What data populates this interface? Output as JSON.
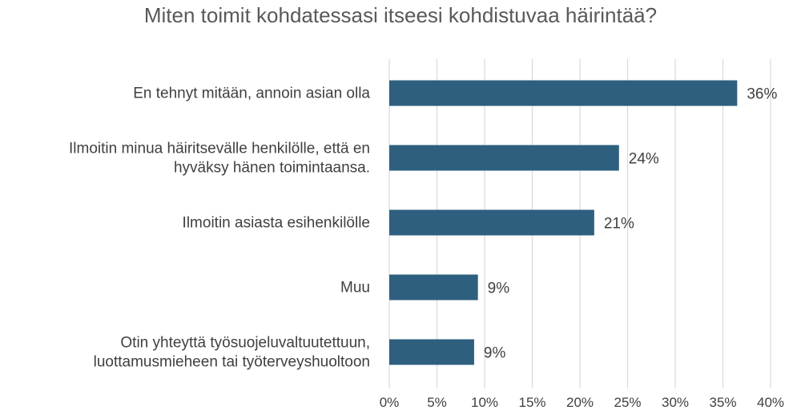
{
  "chart_data": {
    "type": "bar",
    "orientation": "horizontal",
    "title": "Miten toimit kohdatessasi itseesi kohdistuvaa häirintää?",
    "categories": [
      [
        "En tehnyt mitään, annoin asian olla"
      ],
      [
        "Ilmoitin minua häiritsevälle henkilölle, että en",
        "hyväksy hänen toimintaansa."
      ],
      [
        "Ilmoitin asiasta esihenkilölle"
      ],
      [
        "Muu"
      ],
      [
        "Otin yhteyttä työsuojeluvaltuutettuun,",
        "luottamusmieheen tai työterveyshuoltoon"
      ]
    ],
    "values": [
      36.5,
      24.1,
      21.5,
      9.3,
      8.9
    ],
    "value_labels": [
      "36%",
      "24%",
      "21%",
      "9%",
      "9%"
    ],
    "xlim": [
      0,
      40
    ],
    "x_ticks": [
      0,
      5,
      10,
      15,
      20,
      25,
      30,
      35,
      40
    ],
    "x_tick_labels": [
      "0%",
      "5%",
      "10%",
      "15%",
      "20%",
      "25%",
      "30%",
      "35%",
      "40%"
    ],
    "grid": "vertical",
    "legend": "none",
    "bar_color": "#2E5F7E",
    "grid_color": "#D9D9D9"
  }
}
